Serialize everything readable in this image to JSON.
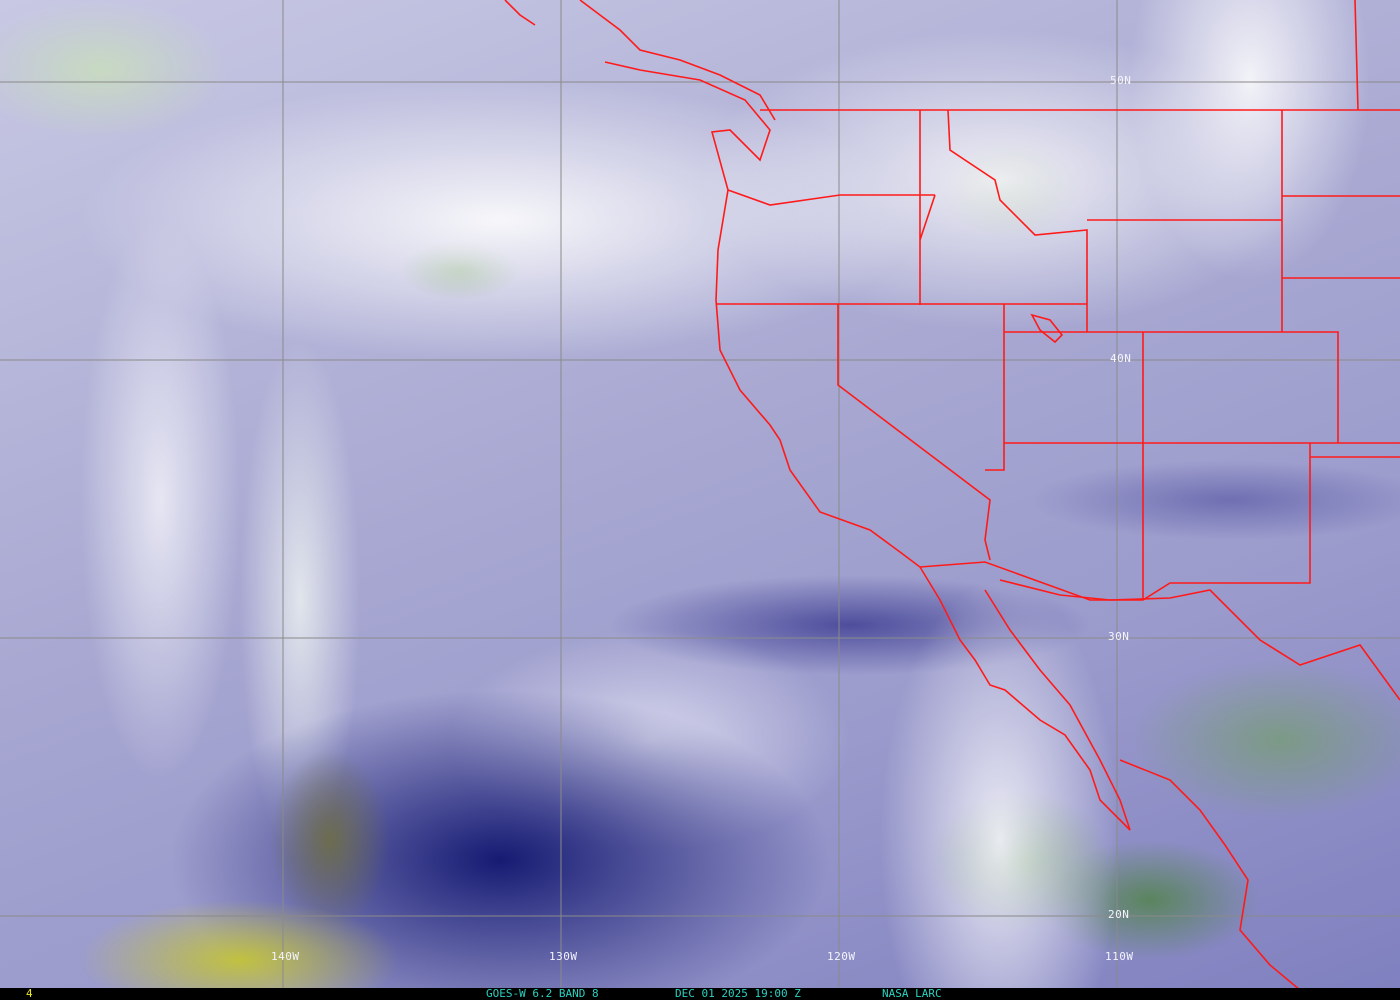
{
  "map": {
    "lat_labels": [
      "50N",
      "40N",
      "30N",
      "20N"
    ],
    "lon_labels": [
      "140W",
      "130W",
      "120W",
      "110W"
    ],
    "border_color": "#ff1a1a",
    "grid_color": "#8a8a8a"
  },
  "footer": {
    "frame_number": "4",
    "product": "GOES-W 6.2 BAND 8",
    "datetime": "DEC 01 2025 19:00 Z",
    "source": "NASA LARC",
    "text_color": "#2ad1c0",
    "frame_color": "#e8e820"
  }
}
